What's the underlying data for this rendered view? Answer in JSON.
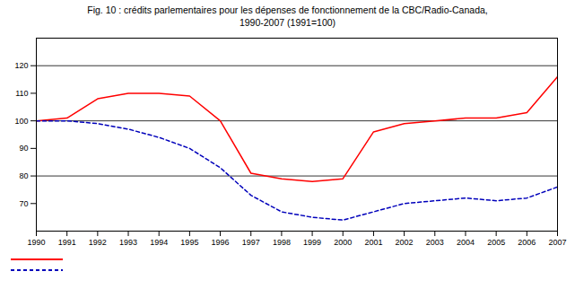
{
  "chart_data": {
    "type": "line",
    "title": "Fig. 10 : crédits parlementaires pour les dépenses de fonctionnement de la CBC/Radio-Canada,",
    "subtitle": "1990-2007 (1991=100)",
    "x": [
      1990,
      1991,
      1992,
      1993,
      1994,
      1995,
      1996,
      1997,
      1998,
      1999,
      2000,
      2001,
      2002,
      2003,
      2004,
      2005,
      2006,
      2007
    ],
    "series": [
      {
        "color": "#ff0000",
        "line_style": "solid",
        "values": [
          100,
          101,
          108,
          110,
          110,
          109,
          100,
          81,
          79,
          78,
          79,
          96,
          99,
          100,
          101,
          101,
          103,
          116
        ]
      },
      {
        "color": "#0000bb",
        "line_style": "dashed",
        "values": [
          100,
          100,
          99,
          97,
          94,
          90,
          83,
          73,
          67,
          65,
          64,
          67,
          70,
          71,
          72,
          71,
          72,
          76
        ]
      }
    ],
    "xlim": [
      1990,
      2007
    ],
    "xticks": [
      1990,
      1991,
      1992,
      1993,
      1994,
      1995,
      1996,
      1997,
      1998,
      1999,
      2000,
      2001,
      2002,
      2003,
      2004,
      2005,
      2006,
      2007
    ],
    "ylim": [
      60,
      130
    ],
    "yticks": [
      70,
      80,
      90,
      100,
      110,
      120
    ],
    "hlines": [
      80,
      100,
      120
    ],
    "grid": false,
    "legend": "lower left"
  }
}
